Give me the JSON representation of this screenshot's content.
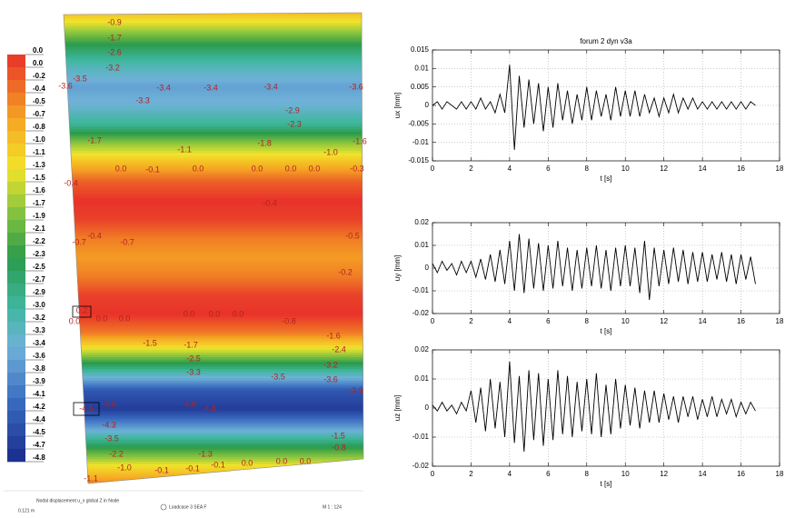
{
  "chart_data": [
    {
      "type": "contour",
      "zlim": [
        -4.8,
        0
      ],
      "colorbar_labels": [
        "0.0",
        "0.0",
        "-0.2",
        "-0.4",
        "-0.5",
        "-0.7",
        "-0.8",
        "-1.0",
        "-1.1",
        "-1.3",
        "-1.5",
        "-1.6",
        "-1.7",
        "-1.9",
        "-2.1",
        "-2.2",
        "-2.3",
        "-2.5",
        "-2.7",
        "-2.9",
        "-3.0",
        "-3.2",
        "-3.3",
        "-3.4",
        "-3.6",
        "-3.8",
        "-3.9",
        "-4.1",
        "-4.2",
        "-4.4",
        "-4.5",
        "-4.7",
        "-4.8"
      ],
      "profile": [
        -0.9,
        -1.7,
        -2.6,
        -3.2,
        -3.6,
        -3.4,
        -2.9,
        -1.8,
        -1.0,
        -0.3,
        0.0,
        -0.1,
        -0.5,
        -0.7,
        -0.5,
        -0.1,
        0.0,
        -0.5,
        -1.6,
        -3.0,
        -4.3,
        -4.6,
        -3.6,
        -2.4,
        -1.3,
        -0.5
      ],
      "annotations": [
        "-0.9",
        "-1.7",
        "-2.6",
        "-3.2",
        "-3.5",
        "-3.6",
        "-3.3",
        "-3.4",
        "-3.4",
        "-3.4",
        "-3.6",
        "-2.9",
        "-2.3",
        "-1.7",
        "-1.1",
        "-1.8",
        "-1.0",
        "-1.6",
        "0.0",
        "-0.1",
        "0.0",
        "0.0",
        "0.0",
        "0.0",
        "-0.3",
        "-0.4",
        "-0.4",
        "-0.4",
        "-0.7",
        "-0.7",
        "-0.5",
        "-0.2",
        "0.2",
        "0.0",
        "0.0",
        "0.0",
        "0.0",
        "0.0",
        "0.0",
        "-0.8",
        "-1.6",
        "-1.5",
        "-1.7",
        "-2.5",
        "-3.3",
        "-2.4",
        "-3.2",
        "-3.5",
        "-3.6",
        "-3.9",
        "-4.5",
        "-4.6",
        "-4.8",
        "-4.8",
        "-4.3",
        "-3.5",
        "-2.2",
        "-1.0",
        "-1.1",
        "-0.1",
        "-0.1",
        "-0.1",
        "0.0",
        "0.0",
        "0.0",
        "-1.5",
        "-0.8",
        "-1.3"
      ],
      "notes": [
        "Nodal displacement u_x global Z in Node",
        "Loadcase 3 SEA F",
        "M 1 : 124",
        "0.121 m"
      ]
    },
    {
      "type": "line",
      "title": "forum 2 dyn v3a",
      "xlabel": "t [s]",
      "ylabel": "ux [mm]",
      "color": "#000000",
      "grid": true,
      "xlim": [
        0,
        18
      ],
      "xticks": [
        0,
        2,
        4,
        6,
        8,
        10,
        12,
        14,
        16,
        18
      ],
      "ylim": [
        -0.015,
        0.015
      ],
      "yticks": [
        -0.015,
        -0.01,
        -0.005,
        0,
        0.005,
        0.01,
        0.015
      ],
      "x": [
        0,
        0.25,
        0.5,
        0.75,
        1,
        1.25,
        1.5,
        1.75,
        2,
        2.25,
        2.5,
        2.75,
        3,
        3.25,
        3.5,
        3.75,
        4,
        4.25,
        4.5,
        4.75,
        5,
        5.25,
        5.5,
        5.75,
        6,
        6.25,
        6.5,
        6.75,
        7,
        7.25,
        7.5,
        7.75,
        8,
        8.25,
        8.5,
        8.75,
        9,
        9.25,
        9.5,
        9.75,
        10,
        10.25,
        10.5,
        10.75,
        11,
        11.25,
        11.5,
        11.75,
        12,
        12.25,
        12.5,
        12.75,
        13,
        13.25,
        13.5,
        13.75,
        14,
        14.25,
        14.5,
        14.75,
        15,
        15.25,
        15.5,
        15.75,
        16,
        16.25,
        16.5,
        16.75
      ],
      "values": [
        0.0,
        0.001,
        -0.001,
        0.001,
        0.0,
        -0.001,
        0.001,
        -0.001,
        0.001,
        -0.001,
        0.002,
        -0.001,
        0.001,
        -0.002,
        0.003,
        -0.002,
        0.011,
        -0.012,
        0.008,
        -0.006,
        0.007,
        -0.005,
        0.006,
        -0.007,
        0.005,
        -0.006,
        0.006,
        -0.004,
        0.004,
        -0.005,
        0.003,
        -0.004,
        0.005,
        -0.004,
        0.004,
        -0.003,
        0.003,
        -0.004,
        0.005,
        -0.003,
        0.004,
        -0.003,
        0.004,
        -0.003,
        0.003,
        -0.002,
        0.002,
        -0.003,
        0.002,
        -0.002,
        0.003,
        -0.002,
        0.002,
        -0.001,
        0.002,
        -0.001,
        0.001,
        -0.001,
        0.001,
        -0.001,
        0.001,
        -0.001,
        0.001,
        -0.001,
        0.001,
        -0.001,
        0.001,
        0.0
      ]
    },
    {
      "type": "line",
      "xlabel": "t [s]",
      "ylabel": "uy [mm]",
      "color": "#000000",
      "grid": true,
      "xlim": [
        0,
        18
      ],
      "xticks": [
        0,
        2,
        4,
        6,
        8,
        10,
        12,
        14,
        16,
        18
      ],
      "ylim": [
        -0.02,
        0.02
      ],
      "yticks": [
        -0.02,
        -0.01,
        0,
        0.01,
        0.02
      ],
      "x": [
        0,
        0.25,
        0.5,
        0.75,
        1,
        1.25,
        1.5,
        1.75,
        2,
        2.25,
        2.5,
        2.75,
        3,
        3.25,
        3.5,
        3.75,
        4,
        4.25,
        4.5,
        4.75,
        5,
        5.25,
        5.5,
        5.75,
        6,
        6.25,
        6.5,
        6.75,
        7,
        7.25,
        7.5,
        7.75,
        8,
        8.25,
        8.5,
        8.75,
        9,
        9.25,
        9.5,
        9.75,
        10,
        10.25,
        10.5,
        10.75,
        11,
        11.25,
        11.5,
        11.75,
        12,
        12.25,
        12.5,
        12.75,
        13,
        13.25,
        13.5,
        13.75,
        14,
        14.25,
        14.5,
        14.75,
        15,
        15.25,
        15.5,
        15.75,
        16,
        16.25,
        16.5,
        16.75
      ],
      "values": [
        0.002,
        -0.002,
        0.003,
        -0.001,
        0.002,
        -0.003,
        0.003,
        -0.002,
        0.003,
        -0.004,
        0.004,
        -0.005,
        0.006,
        -0.006,
        0.008,
        -0.007,
        0.012,
        -0.01,
        0.015,
        -0.011,
        0.013,
        -0.009,
        0.011,
        -0.01,
        0.01,
        -0.009,
        0.012,
        -0.008,
        0.009,
        -0.01,
        0.008,
        -0.009,
        0.009,
        -0.008,
        0.01,
        -0.009,
        0.008,
        -0.01,
        0.009,
        -0.008,
        0.01,
        -0.008,
        0.009,
        -0.011,
        0.012,
        -0.014,
        0.009,
        -0.008,
        0.008,
        -0.007,
        0.009,
        -0.006,
        0.008,
        -0.007,
        0.007,
        -0.006,
        0.007,
        -0.006,
        0.006,
        -0.005,
        0.007,
        -0.006,
        0.006,
        -0.007,
        0.006,
        -0.005,
        0.005,
        -0.007
      ]
    },
    {
      "type": "line",
      "xlabel": "t [s]",
      "ylabel": "uz [mm]",
      "color": "#000000",
      "grid": true,
      "xlim": [
        0,
        18
      ],
      "xticks": [
        0,
        2,
        4,
        6,
        8,
        10,
        12,
        14,
        16,
        18
      ],
      "ylim": [
        -0.02,
        0.02
      ],
      "yticks": [
        -0.02,
        -0.01,
        0,
        0.01,
        0.02
      ],
      "x": [
        0,
        0.25,
        0.5,
        0.75,
        1,
        1.25,
        1.5,
        1.75,
        2,
        2.25,
        2.5,
        2.75,
        3,
        3.25,
        3.5,
        3.75,
        4,
        4.25,
        4.5,
        4.75,
        5,
        5.25,
        5.5,
        5.75,
        6,
        6.25,
        6.5,
        6.75,
        7,
        7.25,
        7.5,
        7.75,
        8,
        8.25,
        8.5,
        8.75,
        9,
        9.25,
        9.5,
        9.75,
        10,
        10.25,
        10.5,
        10.75,
        11,
        11.25,
        11.5,
        11.75,
        12,
        12.25,
        12.5,
        12.75,
        13,
        13.25,
        13.5,
        13.75,
        14,
        14.25,
        14.5,
        14.75,
        15,
        15.25,
        15.5,
        15.75,
        16,
        16.25,
        16.5,
        16.75
      ],
      "values": [
        0.001,
        -0.001,
        0.002,
        -0.001,
        0.001,
        -0.002,
        0.002,
        -0.001,
        0.006,
        -0.005,
        0.007,
        -0.008,
        0.01,
        -0.007,
        0.009,
        -0.01,
        0.016,
        -0.012,
        0.011,
        -0.015,
        0.013,
        -0.011,
        0.012,
        -0.013,
        0.01,
        -0.011,
        0.013,
        -0.009,
        0.011,
        -0.01,
        0.009,
        -0.008,
        0.01,
        -0.009,
        0.012,
        -0.01,
        0.008,
        -0.009,
        0.01,
        -0.007,
        0.008,
        -0.006,
        0.007,
        -0.007,
        0.006,
        -0.005,
        0.006,
        -0.005,
        0.005,
        -0.004,
        0.004,
        -0.005,
        0.004,
        -0.003,
        0.004,
        -0.004,
        0.003,
        -0.003,
        0.004,
        -0.003,
        0.003,
        -0.002,
        0.003,
        -0.003,
        0.002,
        -0.002,
        0.002,
        -0.001
      ]
    }
  ]
}
